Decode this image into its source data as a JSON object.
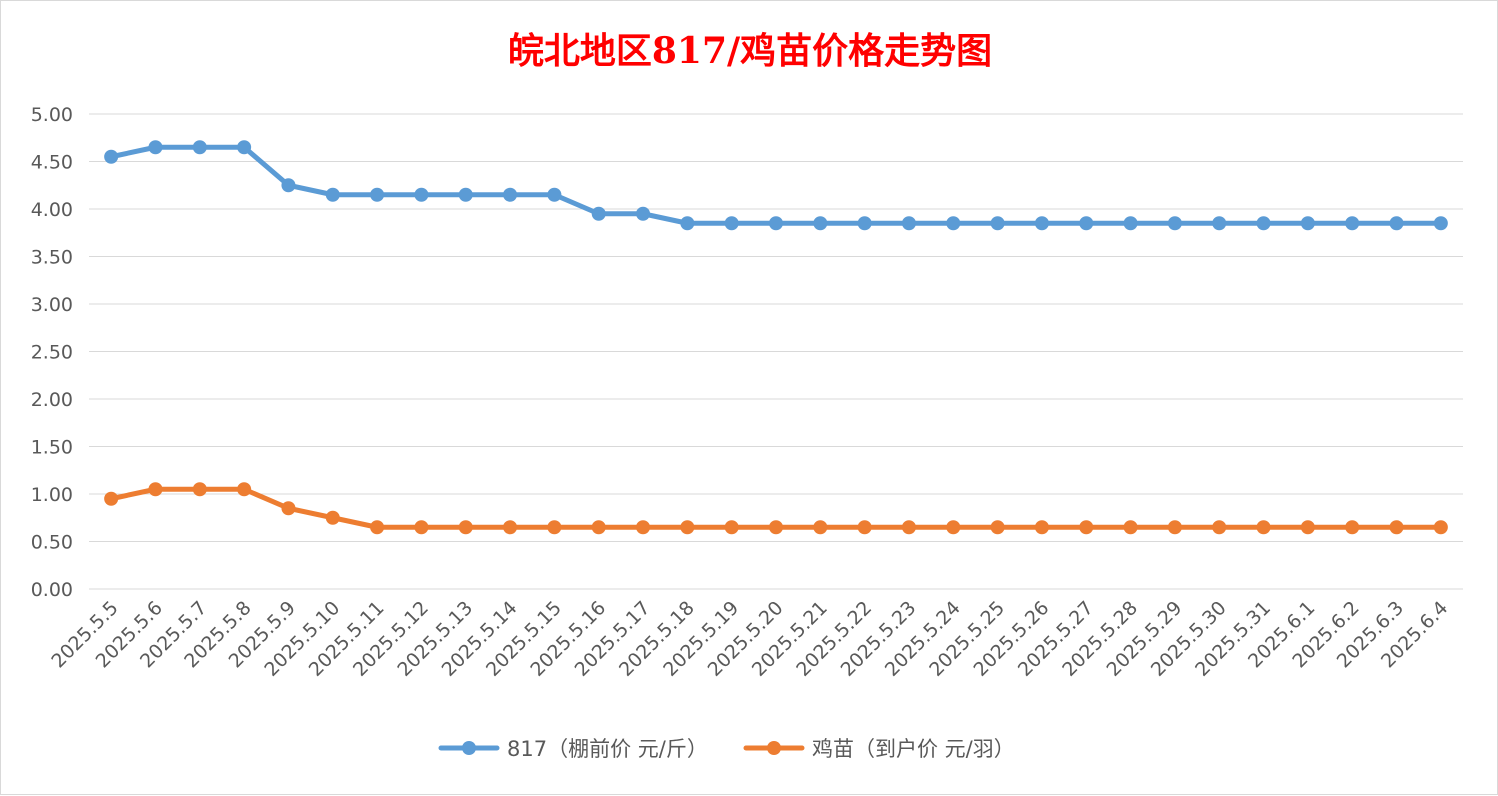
{
  "chart_data": {
    "type": "line",
    "title": "皖北地区817/鸡苗价格走势图",
    "xlabel": "",
    "ylabel": "",
    "ylim": [
      0,
      5
    ],
    "y_ticks": [
      "0.00",
      "0.50",
      "1.00",
      "1.50",
      "2.00",
      "2.50",
      "3.00",
      "3.50",
      "4.00",
      "4.50",
      "5.00"
    ],
    "grid": true,
    "legend_position": "bottom",
    "categories": [
      "2025.5.5",
      "2025.5.6",
      "2025.5.7",
      "2025.5.8",
      "2025.5.9",
      "2025.5.10",
      "2025.5.11",
      "2025.5.12",
      "2025.5.13",
      "2025.5.14",
      "2025.5.15",
      "2025.5.16",
      "2025.5.17",
      "2025.5.18",
      "2025.5.19",
      "2025.5.20",
      "2025.5.21",
      "2025.5.22",
      "2025.5.23",
      "2025.5.24",
      "2025.5.25",
      "2025.5.26",
      "2025.5.27",
      "2025.5.28",
      "2025.5.29",
      "2025.5.30",
      "2025.5.31",
      "2025.6.1",
      "2025.6.2",
      "2025.6.3",
      "2025.6.4"
    ],
    "series": [
      {
        "name": "817（棚前价 元/斤）",
        "color": "#5b9bd5",
        "values": [
          4.55,
          4.65,
          4.65,
          4.65,
          4.25,
          4.15,
          4.15,
          4.15,
          4.15,
          4.15,
          4.15,
          3.95,
          3.95,
          3.85,
          3.85,
          3.85,
          3.85,
          3.85,
          3.85,
          3.85,
          3.85,
          3.85,
          3.85,
          3.85,
          3.85,
          3.85,
          3.85,
          3.85,
          3.85,
          3.85,
          3.85
        ]
      },
      {
        "name": "鸡苗（到户价 元/羽）",
        "color": "#ed7d31",
        "values": [
          0.95,
          1.05,
          1.05,
          1.05,
          0.85,
          0.75,
          0.65,
          0.65,
          0.65,
          0.65,
          0.65,
          0.65,
          0.65,
          0.65,
          0.65,
          0.65,
          0.65,
          0.65,
          0.65,
          0.65,
          0.65,
          0.65,
          0.65,
          0.65,
          0.65,
          0.65,
          0.65,
          0.65,
          0.65,
          0.65,
          0.65
        ]
      }
    ]
  }
}
